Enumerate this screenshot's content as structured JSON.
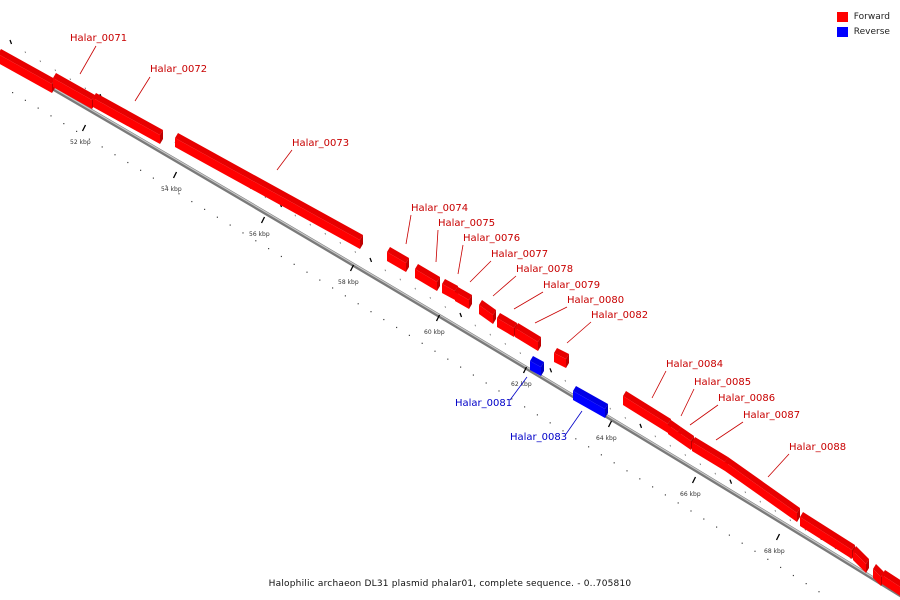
{
  "legend": {
    "forward_label": "Forward",
    "reverse_label": "Reverse",
    "forward_color": "#ff0000",
    "reverse_color": "#0000ff"
  },
  "caption": "Halophilic archaeon DL31 plasmid phalar01, complete sequence. - 0..705810",
  "axis_labels": [
    "52 kbp",
    "54 kbp",
    "56 kbp",
    "58 kbp",
    "60 kbp",
    "62 kbp",
    "64 kbp",
    "66 kbp",
    "68 kbp"
  ],
  "genes": [
    {
      "name": "Halar_0071",
      "strand": "forward"
    },
    {
      "name": "Halar_0072",
      "strand": "forward"
    },
    {
      "name": "Halar_0073",
      "strand": "forward"
    },
    {
      "name": "Halar_0074",
      "strand": "forward"
    },
    {
      "name": "Halar_0075",
      "strand": "forward"
    },
    {
      "name": "Halar_0076",
      "strand": "forward"
    },
    {
      "name": "Halar_0077",
      "strand": "forward"
    },
    {
      "name": "Halar_0078",
      "strand": "forward"
    },
    {
      "name": "Halar_0079",
      "strand": "forward"
    },
    {
      "name": "Halar_0080",
      "strand": "forward"
    },
    {
      "name": "Halar_0081",
      "strand": "reverse"
    },
    {
      "name": "Halar_0082",
      "strand": "forward"
    },
    {
      "name": "Halar_0083",
      "strand": "reverse"
    },
    {
      "name": "Halar_0084",
      "strand": "forward"
    },
    {
      "name": "Halar_0085",
      "strand": "forward"
    },
    {
      "name": "Halar_0086",
      "strand": "forward"
    },
    {
      "name": "Halar_0087",
      "strand": "forward"
    },
    {
      "name": "Halar_0088",
      "strand": "forward"
    }
  ]
}
